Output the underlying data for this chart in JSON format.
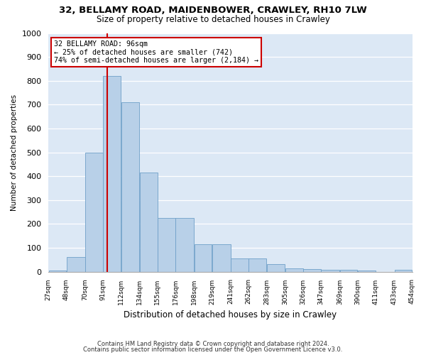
{
  "title1": "32, BELLAMY ROAD, MAIDENBOWER, CRAWLEY, RH10 7LW",
  "title2": "Size of property relative to detached houses in Crawley",
  "xlabel": "Distribution of detached houses by size in Crawley",
  "ylabel": "Number of detached properties",
  "footnote1": "Contains HM Land Registry data © Crown copyright and database right 2024.",
  "footnote2": "Contains public sector information licensed under the Open Government Licence v3.0.",
  "annotation_title": "32 BELLAMY ROAD: 96sqm",
  "annotation_line1": "← 25% of detached houses are smaller (742)",
  "annotation_line2": "74% of semi-detached houses are larger (2,184) →",
  "subject_value": 96,
  "bin_edges": [
    27,
    48,
    70,
    91,
    112,
    134,
    155,
    176,
    198,
    219,
    241,
    262,
    283,
    305,
    326,
    347,
    369,
    390,
    411,
    433,
    454
  ],
  "bin_labels": [
    "27sqm",
    "48sqm",
    "70sqm",
    "91sqm",
    "112sqm",
    "134sqm",
    "155sqm",
    "176sqm",
    "198sqm",
    "219sqm",
    "241sqm",
    "262sqm",
    "283sqm",
    "305sqm",
    "326sqm",
    "347sqm",
    "369sqm",
    "390sqm",
    "411sqm",
    "433sqm",
    "454sqm"
  ],
  "bar_heights": [
    5,
    60,
    500,
    820,
    710,
    415,
    225,
    225,
    115,
    115,
    55,
    55,
    30,
    15,
    10,
    8,
    8,
    5,
    0,
    8
  ],
  "bar_color": "#b8d0e8",
  "bar_edge_color": "#6fa0c8",
  "vline_color": "#cc0000",
  "bg_color": "#dce8f5",
  "grid_color": "#c8d8e8",
  "white_grid_color": "#ffffff",
  "annotation_box_facecolor": "#ffffff",
  "annotation_box_edge": "#cc0000",
  "fig_bg_color": "#ffffff",
  "ylim_max": 1000,
  "ytick_interval": 100
}
